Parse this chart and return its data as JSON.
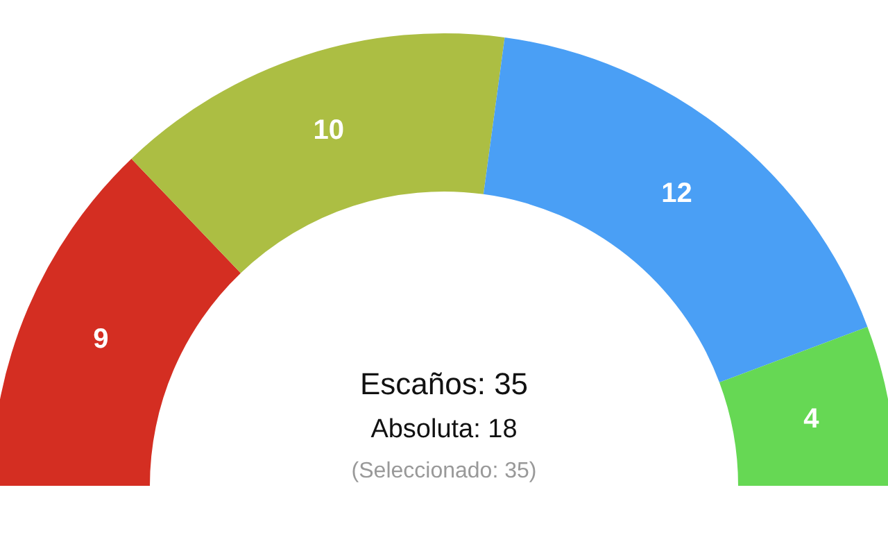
{
  "chart_data": {
    "type": "donut",
    "categories": [
      null,
      null,
      null,
      null
    ],
    "values": [
      9,
      10,
      12,
      4
    ],
    "colors": [
      "#d42e22",
      "#acbe43",
      "#4a9ff5",
      "#66d854"
    ],
    "data_labels": true,
    "annotations": [
      "Escaños: 35",
      "Absoluta: 18",
      "(Seleccionado: 35)"
    ]
  }
}
